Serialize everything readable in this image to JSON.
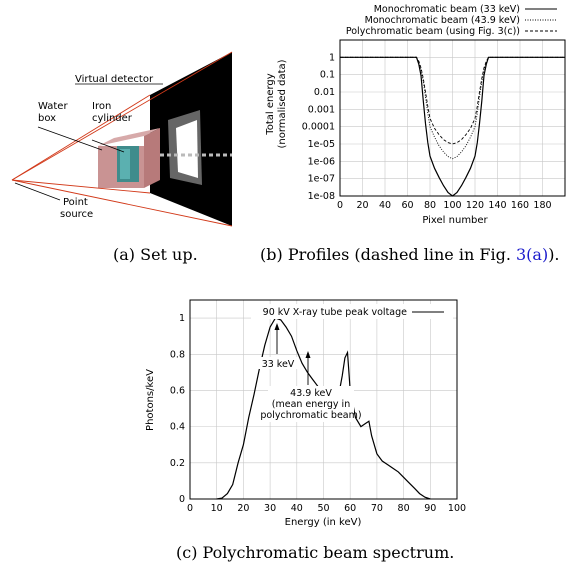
{
  "captions": {
    "a": "(a) Set up.",
    "b_prefix": "(b) Profiles (dashed line in Fig. ",
    "b_ref": "3(a)",
    "b_suffix": ").",
    "c": "(c) Polychromatic beam spectrum."
  },
  "setup_labels": {
    "virtual_detector": "Virtual detector",
    "water_box_1": "Water",
    "water_box_2": "box",
    "iron_cylinder_1": "Iron",
    "iron_cylinder_2": "cylinder",
    "point_source_1": "Point",
    "point_source_2": "source"
  },
  "chart_data": [
    {
      "type": "line",
      "xlabel": "Pixel number",
      "ylabel": "Total energy",
      "ylabel2": "(normalised data)",
      "x_ticks": [
        "0",
        "20",
        "40",
        "60",
        "80",
        "100",
        "120",
        "140",
        "160",
        "180"
      ],
      "y_ticks": [
        "1",
        "0.1",
        "0.01",
        "0.001",
        "0.0001",
        "1e-05",
        "1e-06",
        "1e-07",
        "1e-08"
      ],
      "xlim": [
        0,
        200
      ],
      "ylim_log10": [
        -8,
        1
      ],
      "grid": true,
      "legend_position": "top",
      "series": [
        {
          "name": "Monochromatic beam (33 keV)",
          "style": "solid",
          "points": [
            [
              0,
              1
            ],
            [
              66,
              1
            ],
            [
              68,
              1
            ],
            [
              70,
              0.4
            ],
            [
              72,
              0.09
            ],
            [
              74,
              0.003
            ],
            [
              76,
              0.00015
            ],
            [
              78,
              1.2e-05
            ],
            [
              80,
              2e-06
            ],
            [
              84,
              4e-07
            ],
            [
              88,
              1.2e-07
            ],
            [
              92,
              4e-08
            ],
            [
              96,
              1.6e-08
            ],
            [
              100,
              1e-08
            ],
            [
              104,
              1.6e-08
            ],
            [
              108,
              4e-08
            ],
            [
              112,
              1.2e-07
            ],
            [
              116,
              4e-07
            ],
            [
              120,
              2e-06
            ],
            [
              122,
              1.2e-05
            ],
            [
              124,
              0.00015
            ],
            [
              126,
              0.003
            ],
            [
              128,
              0.09
            ],
            [
              130,
              0.4
            ],
            [
              132,
              1
            ],
            [
              200,
              1
            ]
          ]
        },
        {
          "name": "Monochromatic beam (43.9 keV)",
          "style": "dotted",
          "points": [
            [
              0,
              1
            ],
            [
              68,
              1
            ],
            [
              70,
              0.5
            ],
            [
              72,
              0.2
            ],
            [
              74,
              0.04
            ],
            [
              76,
              0.005
            ],
            [
              78,
              0.0006
            ],
            [
              80,
              0.0001
            ],
            [
              84,
              2.5e-05
            ],
            [
              88,
              8e-06
            ],
            [
              92,
              3.5e-06
            ],
            [
              96,
              1.9e-06
            ],
            [
              100,
              1.4e-06
            ],
            [
              104,
              1.9e-06
            ],
            [
              108,
              3.5e-06
            ],
            [
              112,
              8e-06
            ],
            [
              116,
              2.5e-05
            ],
            [
              120,
              0.0001
            ],
            [
              122,
              0.0006
            ],
            [
              124,
              0.005
            ],
            [
              126,
              0.04
            ],
            [
              128,
              0.2
            ],
            [
              130,
              0.5
            ],
            [
              132,
              1
            ],
            [
              200,
              1
            ]
          ]
        },
        {
          "name": "Polychromatic beam (using Fig. 3(c))",
          "style": "dashed",
          "points": [
            [
              0,
              1
            ],
            [
              68,
              1
            ],
            [
              70,
              0.6
            ],
            [
              72,
              0.25
            ],
            [
              74,
              0.06
            ],
            [
              76,
              0.01
            ],
            [
              78,
              0.0015
            ],
            [
              80,
              0.0003
            ],
            [
              84,
              8e-05
            ],
            [
              88,
              3.5e-05
            ],
            [
              92,
              1.8e-05
            ],
            [
              96,
              1.2e-05
            ],
            [
              100,
              1e-05
            ],
            [
              104,
              1.2e-05
            ],
            [
              108,
              1.8e-05
            ],
            [
              112,
              3.5e-05
            ],
            [
              116,
              8e-05
            ],
            [
              120,
              0.0003
            ],
            [
              122,
              0.0015
            ],
            [
              124,
              0.01
            ],
            [
              126,
              0.06
            ],
            [
              128,
              0.25
            ],
            [
              130,
              0.6
            ],
            [
              132,
              1
            ],
            [
              200,
              1
            ]
          ]
        }
      ]
    },
    {
      "type": "line",
      "xlabel": "Energy (in keV)",
      "ylabel": "Photons/keV",
      "x_ticks": [
        "0",
        "10",
        "20",
        "30",
        "40",
        "50",
        "60",
        "70",
        "80",
        "90",
        "100"
      ],
      "y_ticks": [
        "0",
        "0.2",
        "0.4",
        "0.6",
        "0.8",
        "1"
      ],
      "xlim": [
        0,
        100
      ],
      "ylim": [
        0,
        1.1
      ],
      "grid": true,
      "legend_position": "top-right",
      "series": [
        {
          "name": "90 kV X-ray tube peak voltage",
          "style": "solid",
          "points": [
            [
              10,
              0
            ],
            [
              12,
              0.005
            ],
            [
              14,
              0.03
            ],
            [
              16,
              0.08
            ],
            [
              18,
              0.2
            ],
            [
              20,
              0.3
            ],
            [
              22,
              0.45
            ],
            [
              24,
              0.58
            ],
            [
              26,
              0.72
            ],
            [
              28,
              0.85
            ],
            [
              30,
              0.95
            ],
            [
              32,
              1.0
            ],
            [
              34,
              0.99
            ],
            [
              36,
              0.95
            ],
            [
              38,
              0.9
            ],
            [
              40,
              0.82
            ],
            [
              42,
              0.75
            ],
            [
              44,
              0.7
            ],
            [
              46,
              0.66
            ],
            [
              48,
              0.62
            ],
            [
              50,
              0.58
            ],
            [
              52,
              0.55
            ],
            [
              54,
              0.54
            ],
            [
              56,
              0.6
            ],
            [
              57,
              0.68
            ],
            [
              58,
              0.78
            ],
            [
              59,
              0.81
            ],
            [
              60,
              0.6
            ],
            [
              62,
              0.45
            ],
            [
              64,
              0.4
            ],
            [
              66,
              0.42
            ],
            [
              67,
              0.43
            ],
            [
              68,
              0.35
            ],
            [
              70,
              0.25
            ],
            [
              72,
              0.21
            ],
            [
              74,
              0.19
            ],
            [
              76,
              0.17
            ],
            [
              78,
              0.15
            ],
            [
              80,
              0.12
            ],
            [
              82,
              0.09
            ],
            [
              84,
              0.06
            ],
            [
              86,
              0.03
            ],
            [
              88,
              0.01
            ],
            [
              90,
              0
            ]
          ]
        }
      ],
      "annotations": [
        {
          "text": "33 keV",
          "x": 33,
          "y": 1.0
        },
        {
          "text": "43.9 keV",
          "text2": "(mean energy in",
          "text3": "polychromatic beam)",
          "x": 43.9,
          "y": 0.86
        }
      ]
    }
  ]
}
